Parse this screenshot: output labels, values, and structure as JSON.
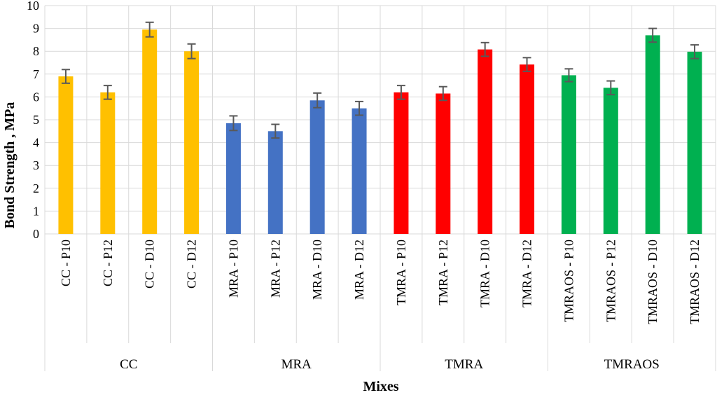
{
  "chart_data": {
    "type": "bar",
    "title": "",
    "xlabel": "Mixes",
    "ylabel": "Bond Strength , MPa",
    "ylim": [
      0,
      10
    ],
    "y_ticks": [
      "0",
      "1",
      "2",
      "3",
      "4",
      "5",
      "6",
      "7",
      "8",
      "9",
      "10"
    ],
    "grid": true,
    "legend": "none",
    "groups": [
      {
        "name": "CC",
        "color": "#FFC000",
        "categories": [
          "CC - P10",
          "CC - P12",
          "CC - D10",
          "CC - D12"
        ],
        "values": [
          6.9,
          6.2,
          8.95,
          8.0
        ],
        "errors": [
          0.3,
          0.3,
          0.32,
          0.32
        ]
      },
      {
        "name": "MRA",
        "color": "#4472C4",
        "categories": [
          "MRA - P10",
          "MRA - P12",
          "MRA - D10",
          "MRA - D12"
        ],
        "values": [
          4.85,
          4.5,
          5.85,
          5.5
        ],
        "errors": [
          0.32,
          0.3,
          0.32,
          0.3
        ]
      },
      {
        "name": "TMRA",
        "color": "#FF0000",
        "categories": [
          "TMRA - P10",
          "TMRA - P12",
          "TMRA - D10",
          "TMRA - D12"
        ],
        "values": [
          6.2,
          6.15,
          8.08,
          7.42
        ],
        "errors": [
          0.3,
          0.3,
          0.3,
          0.3
        ]
      },
      {
        "name": "TMRAOS",
        "color": "#00B050",
        "categories": [
          "TMRAOS - P10",
          "TMRAOS - P12",
          "TMRAOS - D10",
          "TMRAOS - D12"
        ],
        "values": [
          6.95,
          6.4,
          8.7,
          7.98
        ],
        "errors": [
          0.28,
          0.3,
          0.3,
          0.3
        ]
      }
    ]
  }
}
